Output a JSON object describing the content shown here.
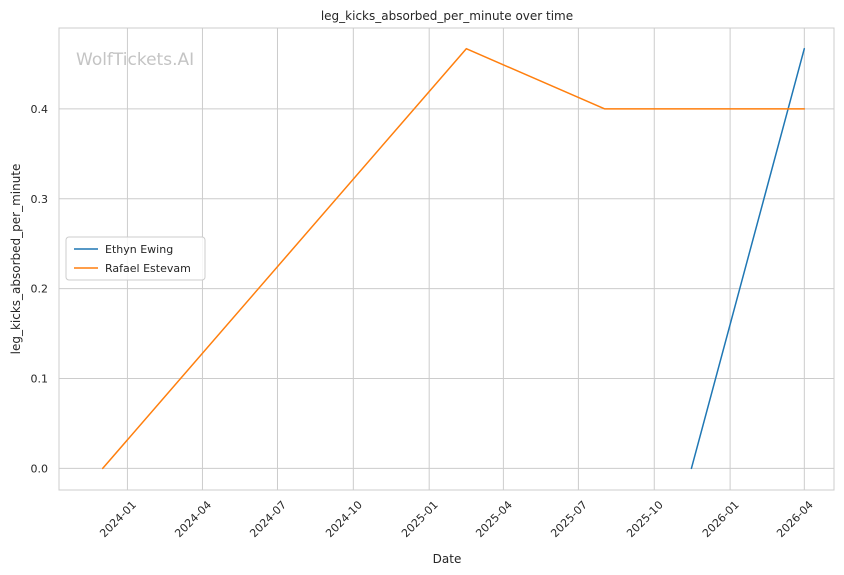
{
  "watermark": "WolfTickets.AI",
  "chart_data": {
    "type": "line",
    "title": "leg_kicks_absorbed_per_minute over time",
    "xlabel": "Date",
    "ylabel": "leg_kicks_absorbed_per_minute",
    "x_type": "date",
    "xlim": [
      "2023-10-10",
      "2026-05-07"
    ],
    "ylim": [
      -0.024,
      0.49
    ],
    "x_ticks": [
      "2024-01-01",
      "2024-04-01",
      "2024-07-01",
      "2024-10-01",
      "2025-01-01",
      "2025-04-01",
      "2025-07-01",
      "2025-10-01",
      "2026-01-01",
      "2026-04-01"
    ],
    "x_tick_labels": [
      "2024-01",
      "2024-04",
      "2024-07",
      "2024-10",
      "2025-01",
      "2025-04",
      "2025-07",
      "2025-10",
      "2026-01",
      "2026-04"
    ],
    "y_ticks": [
      0.0,
      0.1,
      0.2,
      0.3,
      0.4
    ],
    "y_tick_labels": [
      "0.0",
      "0.1",
      "0.2",
      "0.3",
      "0.4"
    ],
    "grid": true,
    "legend_position": "center-left",
    "series": [
      {
        "name": "Ethyn Ewing",
        "color": "#1f77b4",
        "points": [
          {
            "x": "2025-11-15",
            "y": 0.0
          },
          {
            "x": "2026-04-01",
            "y": 0.467
          }
        ]
      },
      {
        "name": "Rafael Estevam",
        "color": "#ff7f0e",
        "points": [
          {
            "x": "2023-12-02",
            "y": 0.0
          },
          {
            "x": "2025-02-15",
            "y": 0.467
          },
          {
            "x": "2025-08-02",
            "y": 0.4
          },
          {
            "x": "2026-04-01",
            "y": 0.4
          }
        ]
      }
    ]
  }
}
